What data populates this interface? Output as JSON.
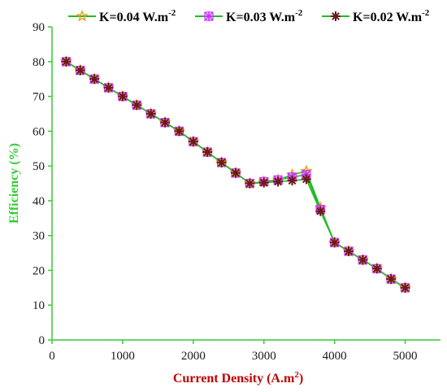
{
  "chart_data": {
    "type": "line",
    "title": "",
    "xlabel": "Current Density (A.m",
    "xlabel_sup": "2",
    "xlabel_end": ")",
    "ylabel": "Efficiency (%)",
    "xlim": [
      0,
      5500
    ],
    "ylim": [
      0,
      90
    ],
    "xticks": [
      0,
      1000,
      2000,
      3000,
      4000,
      5000
    ],
    "yticks": [
      0,
      10,
      20,
      30,
      40,
      50,
      60,
      70,
      80,
      90
    ],
    "grid": false,
    "legend_position": "top",
    "line_color": "#22bb22",
    "series": [
      {
        "name": "K=0.04 W.m",
        "name_sup": "-2",
        "marker": "star",
        "marker_color": "#e8a020",
        "x": [
          200,
          400,
          600,
          800,
          1000,
          1200,
          1400,
          1600,
          1800,
          2000,
          2200,
          2400,
          2600,
          2800,
          3000,
          3200,
          3400,
          3600,
          3800,
          4000,
          4200,
          4400,
          4600,
          4800,
          5000
        ],
        "values": [
          80,
          77.5,
          75,
          72.5,
          70,
          67.5,
          65,
          62.5,
          60,
          57,
          54,
          51,
          48,
          45,
          45.5,
          46,
          47.5,
          48.5,
          38,
          28,
          25.5,
          23,
          20.5,
          17.5,
          15
        ]
      },
      {
        "name": "K=0.03 W.m",
        "name_sup": "-2",
        "marker": "asterisk-box",
        "marker_color": "#cc33ff",
        "x": [
          200,
          400,
          600,
          800,
          1000,
          1200,
          1400,
          1600,
          1800,
          2000,
          2200,
          2400,
          2600,
          2800,
          3000,
          3200,
          3400,
          3600,
          3800,
          4000,
          4200,
          4400,
          4600,
          4800,
          5000
        ],
        "values": [
          80,
          77.5,
          75,
          72.5,
          70,
          67.5,
          65,
          62.5,
          60,
          57,
          54,
          51,
          48,
          45,
          45.5,
          46,
          46.8,
          47.5,
          37.5,
          28,
          25.5,
          23,
          20.5,
          17.5,
          15
        ]
      },
      {
        "name": "K=0.02 W.m",
        "name_sup": "-2",
        "marker": "asterisk",
        "marker_color": "#6b1a1a",
        "x": [
          200,
          400,
          600,
          800,
          1000,
          1200,
          1400,
          1600,
          1800,
          2000,
          2200,
          2400,
          2600,
          2800,
          3000,
          3200,
          3400,
          3600,
          3800,
          4000,
          4200,
          4400,
          4600,
          4800,
          5000
        ],
        "values": [
          80,
          77.5,
          75,
          72.5,
          70,
          67.5,
          65,
          62.5,
          60,
          57,
          54,
          51,
          48,
          45,
          45.2,
          45.5,
          45.8,
          46.2,
          37,
          28,
          25.5,
          23,
          20.5,
          17.5,
          15
        ]
      }
    ]
  }
}
